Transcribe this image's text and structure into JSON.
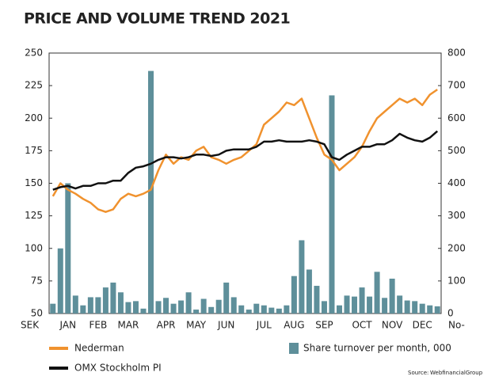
{
  "chart_data": {
    "type": "bar-line",
    "title": "PRICE AND VOLUME TREND 2021",
    "y_unit": "SEK",
    "y2_unit": "No-",
    "source": "Source:",
    "source_name": "WebfinancialGroup",
    "categories": [
      null,
      null,
      "JAN",
      null,
      null,
      null,
      "FEB",
      null,
      null,
      null,
      "MAR",
      null,
      null,
      null,
      null,
      "APR",
      null,
      null,
      null,
      "MAY",
      null,
      null,
      null,
      "JUN",
      null,
      null,
      null,
      null,
      "JUL",
      null,
      null,
      null,
      "AUG",
      null,
      null,
      null,
      "SEP",
      null,
      null,
      null,
      null,
      "OCT",
      null,
      null,
      null,
      "NOV",
      null,
      null,
      null,
      "DEC",
      null,
      null
    ],
    "ylim": [
      50,
      250
    ],
    "yticks": [
      50,
      75,
      100,
      125,
      150,
      175,
      200,
      225,
      250
    ],
    "y2lim": [
      0,
      800
    ],
    "y2ticks": [
      0,
      100,
      200,
      300,
      400,
      500,
      600,
      700,
      800
    ],
    "series": [
      {
        "name": "Share turnover per month, 000",
        "kind": "bar",
        "axis": "y2",
        "color": "#5e8f9a",
        "values": [
          30,
          200,
          400,
          55,
          25,
          50,
          50,
          80,
          95,
          65,
          35,
          38,
          15,
          745,
          38,
          48,
          30,
          40,
          65,
          12,
          45,
          20,
          42,
          95,
          50,
          25,
          12,
          30,
          25,
          18,
          15,
          25,
          115,
          225,
          135,
          85,
          38,
          670,
          25,
          55,
          52,
          80,
          52,
          128,
          48,
          107,
          55,
          40,
          38,
          30,
          25,
          22
        ]
      },
      {
        "name": "Nederman",
        "kind": "line",
        "color": "#f0922e",
        "values": [
          140,
          150,
          145,
          142,
          138,
          135,
          130,
          128,
          130,
          138,
          142,
          140,
          142,
          145,
          160,
          172,
          165,
          170,
          168,
          175,
          178,
          170,
          168,
          165,
          168,
          170,
          175,
          180,
          195,
          200,
          205,
          212,
          210,
          215,
          200,
          185,
          172,
          168,
          160,
          165,
          170,
          178,
          190,
          200,
          205,
          210,
          215,
          212,
          215,
          210,
          218,
          222
        ]
      },
      {
        "name": "OMX Stockholm PI",
        "kind": "line",
        "color": "#111111",
        "values": [
          145,
          147,
          148,
          146,
          148,
          148,
          150,
          150,
          152,
          152,
          158,
          162,
          163,
          165,
          168,
          170,
          170,
          169,
          170,
          172,
          172,
          171,
          172,
          175,
          176,
          176,
          176,
          178,
          182,
          182,
          183,
          182,
          182,
          182,
          183,
          182,
          180,
          170,
          168,
          172,
          175,
          178,
          178,
          180,
          180,
          183,
          188,
          185,
          183,
          182,
          185,
          190
        ]
      }
    ]
  }
}
